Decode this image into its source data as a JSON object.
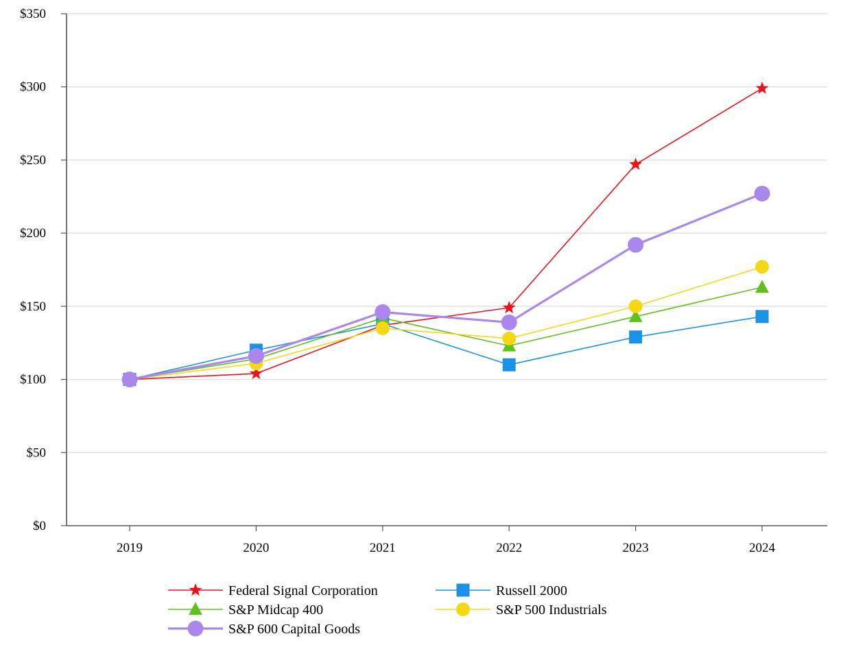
{
  "chart_data": {
    "type": "line",
    "title": "",
    "xlabel": "",
    "ylabel": "",
    "categories": [
      "2019",
      "2020",
      "2021",
      "2022",
      "2023",
      "2024"
    ],
    "ylim": [
      0,
      350
    ],
    "y_ticks": [
      0,
      50,
      100,
      150,
      200,
      250,
      300,
      350
    ],
    "y_tick_labels": [
      "$0",
      "$50",
      "$100",
      "$150",
      "$200",
      "$250",
      "$300",
      "$350"
    ],
    "grid": "horizontal",
    "legend_placement": "bottom",
    "series": [
      {
        "name": "Federal Signal Corporation",
        "values": [
          100,
          104,
          137,
          149,
          247,
          299
        ],
        "color": "#e8141b",
        "marker": "star",
        "line_width": 1.6
      },
      {
        "name": "Russell 2000",
        "values": [
          100,
          120,
          138,
          110,
          129,
          143
        ],
        "color": "#1c92e6",
        "marker": "square",
        "line_width": 1.6
      },
      {
        "name": "S&P Midcap 400",
        "values": [
          100,
          114,
          142,
          123,
          143,
          163
        ],
        "color": "#5fc01f",
        "marker": "triangle",
        "line_width": 1.6
      },
      {
        "name": "S&P 500 Industrials",
        "values": [
          100,
          111,
          135,
          128,
          150,
          177
        ],
        "color": "#f5d815",
        "marker": "circle",
        "line_width": 1.6
      },
      {
        "name": "S&P 600 Capital Goods",
        "values": [
          100,
          116,
          146,
          139,
          192,
          227
        ],
        "color": "#ab87ec",
        "marker": "circle-large",
        "line_width": 3.2
      }
    ]
  }
}
